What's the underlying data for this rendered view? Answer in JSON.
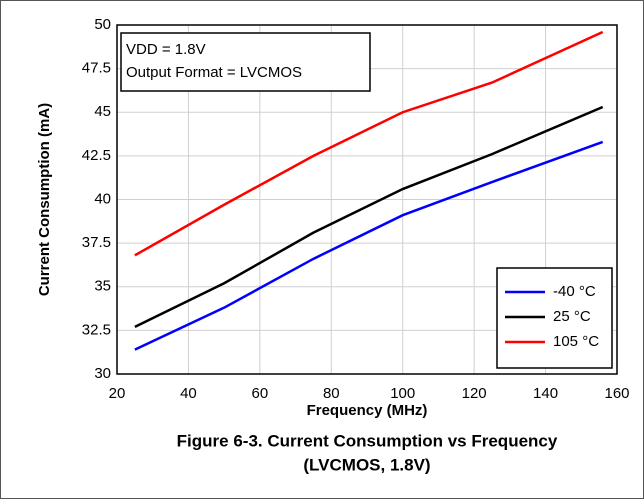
{
  "chart_data": {
    "type": "line",
    "x_label": "Frequency (MHz)",
    "y_label": "Current Consumption (mA)",
    "annotation": [
      "VDD = 1.8V",
      "Output Format = LVCMOS"
    ],
    "caption": [
      "Figure 6-3. Current Consumption vs Frequency",
      "(LVCMOS, 1.8V)"
    ],
    "x": [
      25,
      50,
      75,
      100,
      125,
      156
    ],
    "series": [
      {
        "name": "-40 °C",
        "color": "#0000ff",
        "values": [
          31.4,
          33.8,
          36.6,
          39.1,
          41.0,
          43.3
        ]
      },
      {
        "name": "25 °C",
        "color": "#000000",
        "values": [
          32.7,
          35.2,
          38.1,
          40.6,
          42.6,
          45.3
        ]
      },
      {
        "name": "105 °C",
        "color": "#ff0000",
        "values": [
          36.8,
          39.7,
          42.5,
          45.0,
          46.7,
          49.6
        ]
      }
    ],
    "xlim": [
      20,
      160
    ],
    "xticks": [
      20,
      40,
      60,
      80,
      100,
      120,
      140,
      160
    ],
    "ylim": [
      30,
      50
    ],
    "yticks": [
      30,
      32.5,
      35,
      37.5,
      40,
      42.5,
      45,
      47.5,
      50
    ],
    "grid": true,
    "legend": "lower right"
  }
}
